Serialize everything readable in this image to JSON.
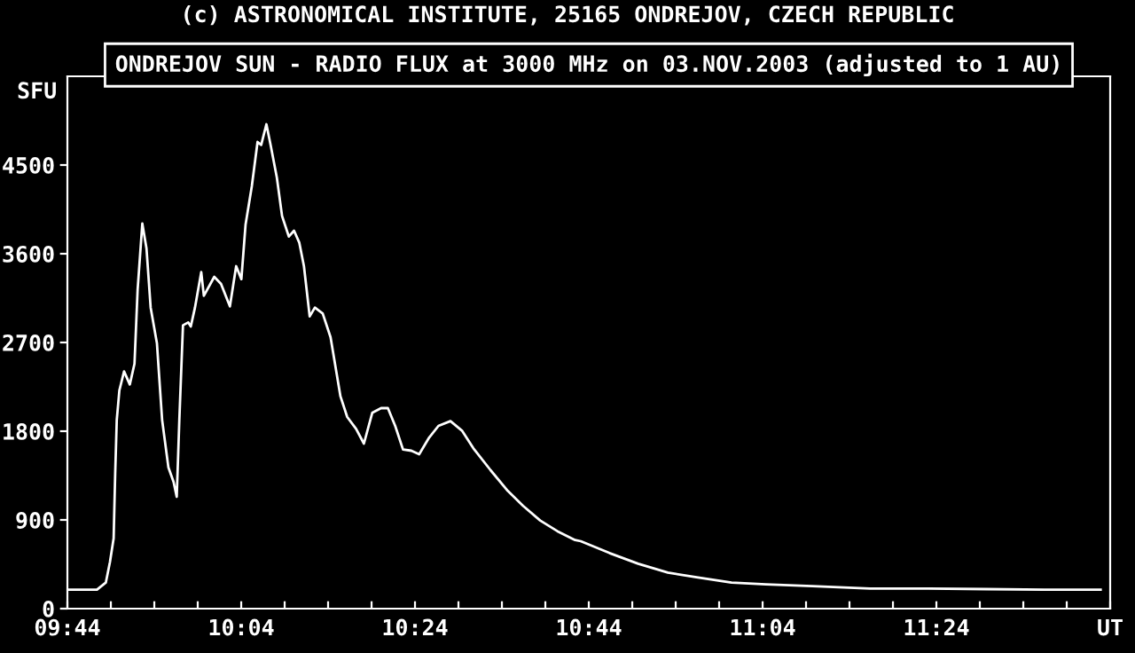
{
  "chart_data": {
    "type": "line",
    "title": "(c) ASTRONOMICAL INSTITUTE, 25165 ONDREJOV, CZECH REPUBLIC",
    "subtitle": "ONDREJOV SUN - RADIO FLUX at 3000 MHz on 03.NOV.2003 (adjusted to 1 AU)",
    "ylabel": "SFU",
    "x": [
      9.7333,
      9.79,
      9.807,
      9.815,
      9.822,
      9.825,
      9.828,
      9.833,
      9.842,
      9.853,
      9.862,
      9.868,
      9.877,
      9.885,
      9.893,
      9.905,
      9.915,
      9.927,
      9.937,
      9.943,
      9.948,
      9.955,
      9.965,
      9.97,
      9.978,
      9.99,
      9.995,
      10.015,
      10.028,
      10.045,
      10.057,
      10.067,
      10.075,
      10.087,
      10.098,
      10.105,
      10.115,
      10.123,
      10.135,
      10.145,
      10.158,
      10.168,
      10.178,
      10.187,
      10.198,
      10.208,
      10.223,
      10.238,
      10.257,
      10.27,
      10.287,
      10.302,
      10.318,
      10.335,
      10.348,
      10.362,
      10.377,
      10.393,
      10.408,
      10.427,
      10.445,
      10.468,
      10.49,
      10.512,
      10.545,
      10.578,
      10.607,
      10.64,
      10.673,
      10.707,
      10.718,
      10.773,
      10.828,
      10.885,
      10.94,
      11.007,
      11.073,
      11.162,
      11.273,
      11.385,
      11.495,
      11.607,
      11.715
    ],
    "series": [
      {
        "color": "#ffffff",
        "values": [
          192,
          192,
          264,
          474,
          714,
          1374,
          1914,
          2214,
          2406,
          2274,
          2484,
          3234,
          3906,
          3654,
          3054,
          2694,
          1914,
          1434,
          1284,
          1134,
          1914,
          2874,
          2904,
          2862,
          3054,
          3414,
          3174,
          3366,
          3294,
          3066,
          3474,
          3342,
          3894,
          4284,
          4734,
          4704,
          4914,
          4704,
          4374,
          3984,
          3774,
          3834,
          3714,
          3474,
          2964,
          3054,
          2994,
          2754,
          2154,
          1944,
          1824,
          1674,
          1986,
          2034,
          2034,
          1854,
          1614,
          1602,
          1566,
          1734,
          1854,
          1902,
          1806,
          1626,
          1404,
          1194,
          1044,
          894,
          786,
          696,
          684,
          564,
          456,
          366,
          318,
          264,
          246,
          228,
          204,
          204,
          198,
          192,
          192
        ]
      }
    ],
    "xlim": [
      9.7333,
      11.7333
    ],
    "xticks": [
      {
        "value": 9.7333,
        "label": "09:44"
      },
      {
        "value": 9.8167,
        "label": null
      },
      {
        "value": 9.9,
        "label": null
      },
      {
        "value": 9.9833,
        "label": null
      },
      {
        "value": 10.0667,
        "label": "10:04"
      },
      {
        "value": 10.15,
        "label": null
      },
      {
        "value": 10.2333,
        "label": null
      },
      {
        "value": 10.3167,
        "label": null
      },
      {
        "value": 10.4,
        "label": "10:24"
      },
      {
        "value": 10.4833,
        "label": null
      },
      {
        "value": 10.5667,
        "label": null
      },
      {
        "value": 10.65,
        "label": null
      },
      {
        "value": 10.7333,
        "label": "10:44"
      },
      {
        "value": 10.8167,
        "label": null
      },
      {
        "value": 10.9,
        "label": null
      },
      {
        "value": 10.9833,
        "label": null
      },
      {
        "value": 11.0667,
        "label": "11:04"
      },
      {
        "value": 11.15,
        "label": null
      },
      {
        "value": 11.2333,
        "label": null
      },
      {
        "value": 11.3167,
        "label": null
      },
      {
        "value": 11.4,
        "label": "11:24"
      },
      {
        "value": 11.4833,
        "label": null
      },
      {
        "value": 11.5667,
        "label": null
      },
      {
        "value": 11.65,
        "label": null
      },
      {
        "value": 11.7333,
        "label": "UT"
      }
    ],
    "ylim": [
      0,
      5400
    ],
    "yticks": [
      0,
      900,
      1800,
      2700,
      3600,
      4500
    ],
    "grid": false,
    "legend": false,
    "marker": "none",
    "line_style": "solid"
  }
}
